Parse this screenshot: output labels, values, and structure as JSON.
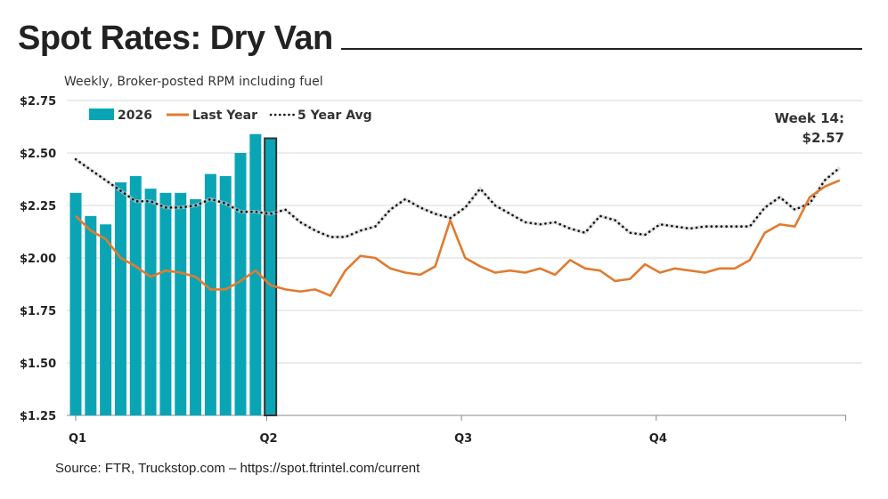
{
  "chart_data": {
    "type": "bar+line",
    "title": "Spot Rates: Dry Van",
    "subtitle": "Weekly, Broker-posted RPM including fuel",
    "source": "Source: FTR, Truckstop.com – https://spot.ftrintel.com/current",
    "ylim": [
      1.25,
      2.75
    ],
    "y_ticks": [
      "$1.25",
      "$1.50",
      "$1.75",
      "$2.00",
      "$2.25",
      "$2.50",
      "$2.75"
    ],
    "y_tick_values": [
      1.25,
      1.5,
      1.75,
      2.0,
      2.25,
      2.5,
      2.75
    ],
    "x_labels": [
      "Q1",
      "Q2",
      "Q3",
      "Q4"
    ],
    "x_unit": "week",
    "grid": true,
    "legend_position": "top-left",
    "series": [
      {
        "name": "2026",
        "type": "bar",
        "color": "#0aa5b5",
        "values": [
          2.31,
          2.2,
          2.16,
          2.36,
          2.39,
          2.33,
          2.31,
          2.31,
          2.28,
          2.4,
          2.39,
          2.5,
          2.59,
          2.57
        ]
      },
      {
        "name": "Last Year",
        "type": "line",
        "color": "#e07b30",
        "values": [
          2.2,
          2.13,
          2.09,
          2.0,
          1.96,
          1.91,
          1.94,
          1.93,
          1.91,
          1.85,
          1.85,
          1.89,
          1.94,
          1.87,
          1.85,
          1.84,
          1.85,
          1.82,
          1.94,
          2.01,
          2.0,
          1.95,
          1.93,
          1.92,
          1.96,
          2.18,
          2.0,
          1.96,
          1.93,
          1.94,
          1.93,
          1.95,
          1.92,
          1.99,
          1.95,
          1.94,
          1.89,
          1.9,
          1.97,
          1.93,
          1.95,
          1.94,
          1.93,
          1.95,
          1.95,
          1.99,
          2.12,
          2.16,
          2.15,
          2.29,
          2.34,
          2.37
        ]
      },
      {
        "name": "5 Year Avg",
        "type": "line-dotted",
        "color": "#111111",
        "values": [
          2.47,
          2.42,
          2.37,
          2.32,
          2.27,
          2.27,
          2.24,
          2.24,
          2.25,
          2.28,
          2.26,
          2.22,
          2.22,
          2.21,
          2.23,
          2.17,
          2.13,
          2.1,
          2.1,
          2.13,
          2.15,
          2.23,
          2.28,
          2.24,
          2.21,
          2.19,
          2.24,
          2.33,
          2.25,
          2.21,
          2.17,
          2.16,
          2.17,
          2.14,
          2.12,
          2.2,
          2.18,
          2.12,
          2.11,
          2.16,
          2.15,
          2.14,
          2.15,
          2.15,
          2.15,
          2.15,
          2.24,
          2.29,
          2.23,
          2.26,
          2.37,
          2.43
        ]
      }
    ],
    "highlight": {
      "week": 14,
      "line1": "Week 14:",
      "line2": "$2.57"
    }
  }
}
